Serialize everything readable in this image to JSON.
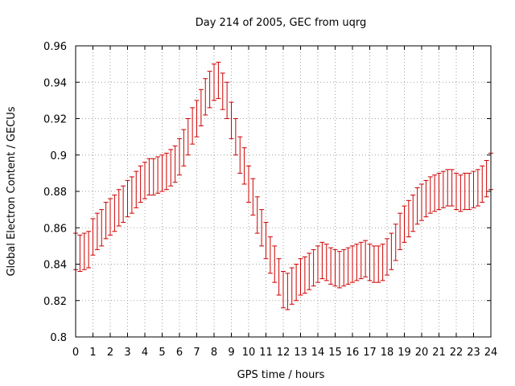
{
  "chart_data": {
    "type": "scatter",
    "title": "Day 214 of 2005, GEC from uqrg",
    "xlabel": "GPS time / hours",
    "ylabel": "Global Electron Content / GECUs",
    "xlim": [
      0,
      24
    ],
    "ylim": [
      0.8,
      0.96
    ],
    "x_ticks": [
      "0",
      "1",
      "2",
      "3",
      "4",
      "5",
      "6",
      "7",
      "8",
      "9",
      "10",
      "11",
      "12",
      "13",
      "14",
      "15",
      "16",
      "17",
      "18",
      "19",
      "20",
      "21",
      "22",
      "23",
      "24"
    ],
    "y_ticks": [
      "0.8",
      "0.82",
      "0.84",
      "0.86",
      "0.88",
      "0.9",
      "0.92",
      "0.94",
      "0.96"
    ],
    "grid": true,
    "colors": {
      "series": "#cc0000",
      "grid": "#a0a0a0",
      "axis": "#000000"
    },
    "error_bar_halfwidth": 0.01,
    "series": [
      {
        "x": [
          0,
          0.25,
          0.5,
          0.75,
          1,
          1.25,
          1.5,
          1.75,
          2,
          2.25,
          2.5,
          2.75,
          3,
          3.25,
          3.5,
          3.75,
          4,
          4.25,
          4.5,
          4.75,
          5,
          5.25,
          5.5,
          5.75,
          6,
          6.25,
          6.5,
          6.75,
          7,
          7.25,
          7.5,
          7.75,
          8,
          8.25,
          8.5,
          8.75,
          9,
          9.25,
          9.5,
          9.75,
          10,
          10.25,
          10.5,
          10.75,
          11,
          11.25,
          11.5,
          11.75,
          12,
          12.25,
          12.5,
          12.75,
          13,
          13.25,
          13.5,
          13.75,
          14,
          14.25,
          14.5,
          14.75,
          15,
          15.25,
          15.5,
          15.75,
          16,
          16.25,
          16.5,
          16.75,
          17,
          17.25,
          17.5,
          17.75,
          18,
          18.25,
          18.5,
          18.75,
          19,
          19.25,
          19.5,
          19.75,
          20,
          20.25,
          20.5,
          20.75,
          21,
          21.25,
          21.5,
          21.75,
          22,
          22.25,
          22.5,
          22.75,
          23,
          23.25,
          23.5,
          23.75,
          24
        ],
        "y": [
          0.847,
          0.846,
          0.847,
          0.848,
          0.855,
          0.858,
          0.86,
          0.864,
          0.866,
          0.868,
          0.871,
          0.873,
          0.876,
          0.878,
          0.881,
          0.884,
          0.886,
          0.888,
          0.888,
          0.889,
          0.89,
          0.891,
          0.893,
          0.895,
          0.899,
          0.904,
          0.91,
          0.916,
          0.92,
          0.926,
          0.932,
          0.936,
          0.94,
          0.941,
          0.935,
          0.93,
          0.919,
          0.91,
          0.9,
          0.894,
          0.884,
          0.877,
          0.867,
          0.86,
          0.853,
          0.845,
          0.84,
          0.833,
          0.826,
          0.825,
          0.828,
          0.83,
          0.833,
          0.834,
          0.836,
          0.838,
          0.84,
          0.842,
          0.841,
          0.839,
          0.838,
          0.837,
          0.838,
          0.839,
          0.84,
          0.841,
          0.842,
          0.843,
          0.841,
          0.84,
          0.84,
          0.841,
          0.844,
          0.847,
          0.852,
          0.858,
          0.862,
          0.865,
          0.868,
          0.872,
          0.874,
          0.876,
          0.878,
          0.879,
          0.88,
          0.881,
          0.882,
          0.882,
          0.88,
          0.879,
          0.88,
          0.88,
          0.881,
          0.882,
          0.884,
          0.887,
          0.891
        ]
      }
    ]
  }
}
